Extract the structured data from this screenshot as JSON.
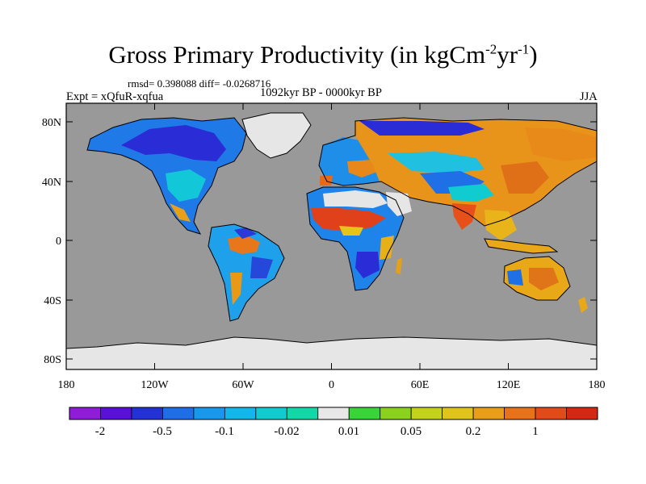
{
  "figure": {
    "title_main": "Gross Primary Productivity (in kgCm",
    "title_exp1": "-2",
    "title_mid": "yr",
    "title_exp2": "-1",
    "title_close": ")",
    "stats": "rmsd= 0.398088 diff= -0.0268716",
    "experiment": "Expt = xQfuR-xqfua",
    "period": "1092kyr BP - 0000kyr BP",
    "season": "JJA"
  },
  "axes": {
    "lat_labels": [
      "80N",
      "40N",
      "0",
      "40S",
      "80S"
    ],
    "lon_labels": [
      "180",
      "120W",
      "60W",
      "0",
      "60E",
      "120E",
      "180"
    ]
  },
  "colorbar": {
    "labels": [
      "-2",
      "-0.5",
      "-0.1",
      "-0.02",
      "0.01",
      "0.05",
      "0.2",
      "1"
    ],
    "colors": [
      "#8f1cd8",
      "#5a10d8",
      "#2332d6",
      "#1f6ee8",
      "#1798ec",
      "#10b7e8",
      "#10ccd0",
      "#12d8a8",
      "#e8e8e8",
      "#38d438",
      "#8ad21c",
      "#c4d21a",
      "#e0c41a",
      "#e89e16",
      "#e8721a",
      "#e34a1a",
      "#d42814"
    ],
    "land_no_data_color": "#e6e6e6",
    "ocean_color": "#999999"
  },
  "map_regions": [
    {
      "name": "greenland-ice",
      "color": "#e6e6e6"
    },
    {
      "name": "antarctica-ice",
      "color": "#e6e6e6"
    },
    {
      "name": "sahara-low-change",
      "color": "#e6e6e6"
    },
    {
      "name": "north-america-decrease",
      "color": "#2a44d8"
    },
    {
      "name": "siberia-increase",
      "color": "#e8881a"
    },
    {
      "name": "africa-sahel-increase",
      "color": "#e04a1a"
    },
    {
      "name": "australia-increase",
      "color": "#e8a818"
    }
  ]
}
